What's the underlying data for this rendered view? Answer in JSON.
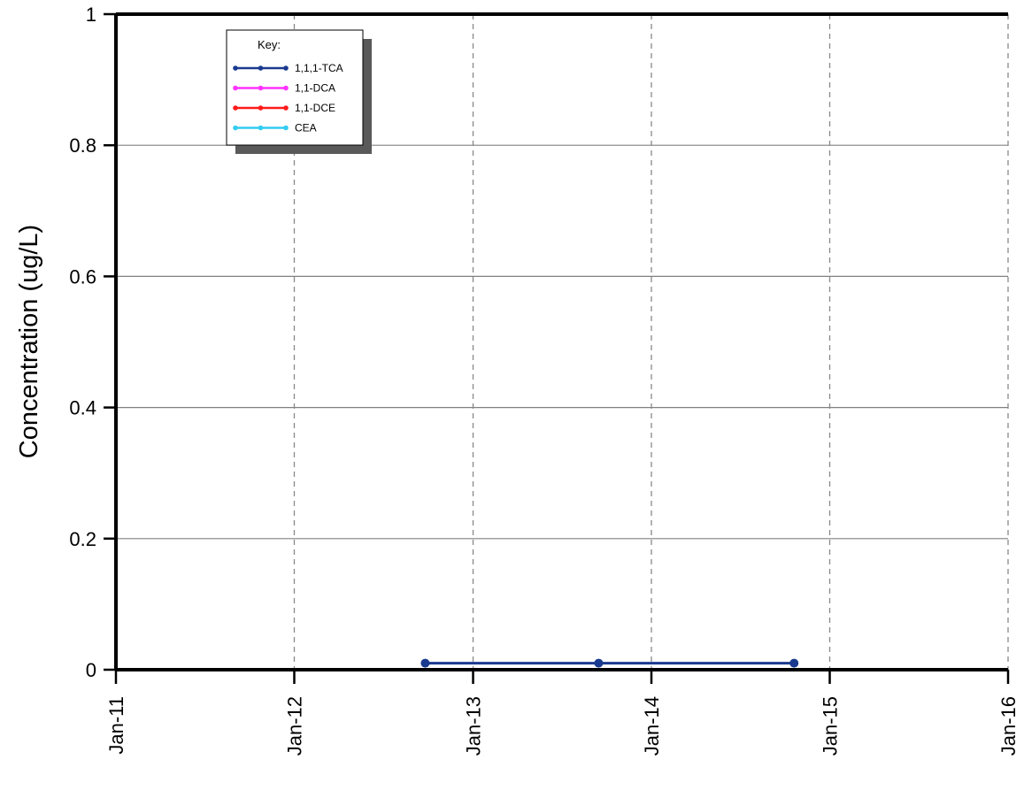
{
  "chart_data": {
    "type": "line",
    "title": "",
    "xlabel": "",
    "ylabel": "Concentration (ug/L)",
    "xlim": [
      "2011-01-01",
      "2016-01-01"
    ],
    "ylim": [
      0,
      1
    ],
    "x_ticks": [
      "2011-01-01",
      "2012-01-01",
      "2013-01-01",
      "2014-01-01",
      "2015-01-01",
      "2016-01-01"
    ],
    "x_tick_labels": [
      "Jan-11",
      "Jan-12",
      "Jan-13",
      "Jan-14",
      "Jan-15",
      "Jan-16"
    ],
    "y_ticks": [
      0,
      0.2,
      0.4,
      0.6,
      0.8,
      1
    ],
    "y_tick_labels": [
      "0",
      "0.2",
      "0.4",
      "0.6",
      "0.8",
      "1"
    ],
    "grid": {
      "horizontal": "solid",
      "vertical": "dashed"
    },
    "legend": {
      "title": "Key:",
      "placement": "top-left",
      "entries": [
        "1,1,1-TCA",
        "1,1-DCA",
        "1,1-DCE",
        "CEA"
      ]
    },
    "series": [
      {
        "name": "1,1,1-TCA",
        "color": "#1a3a8f",
        "x": [
          "2012-09-25",
          "2013-09-15",
          "2014-10-20"
        ],
        "y": [
          0.01,
          0.01,
          0.01
        ]
      },
      {
        "name": "1,1-DCA",
        "color": "#ff33ff",
        "x": [],
        "y": []
      },
      {
        "name": "1,1-DCE",
        "color": "#ff1a1a",
        "x": [],
        "y": []
      },
      {
        "name": "CEA",
        "color": "#33ccf2",
        "x": [],
        "y": []
      }
    ]
  }
}
